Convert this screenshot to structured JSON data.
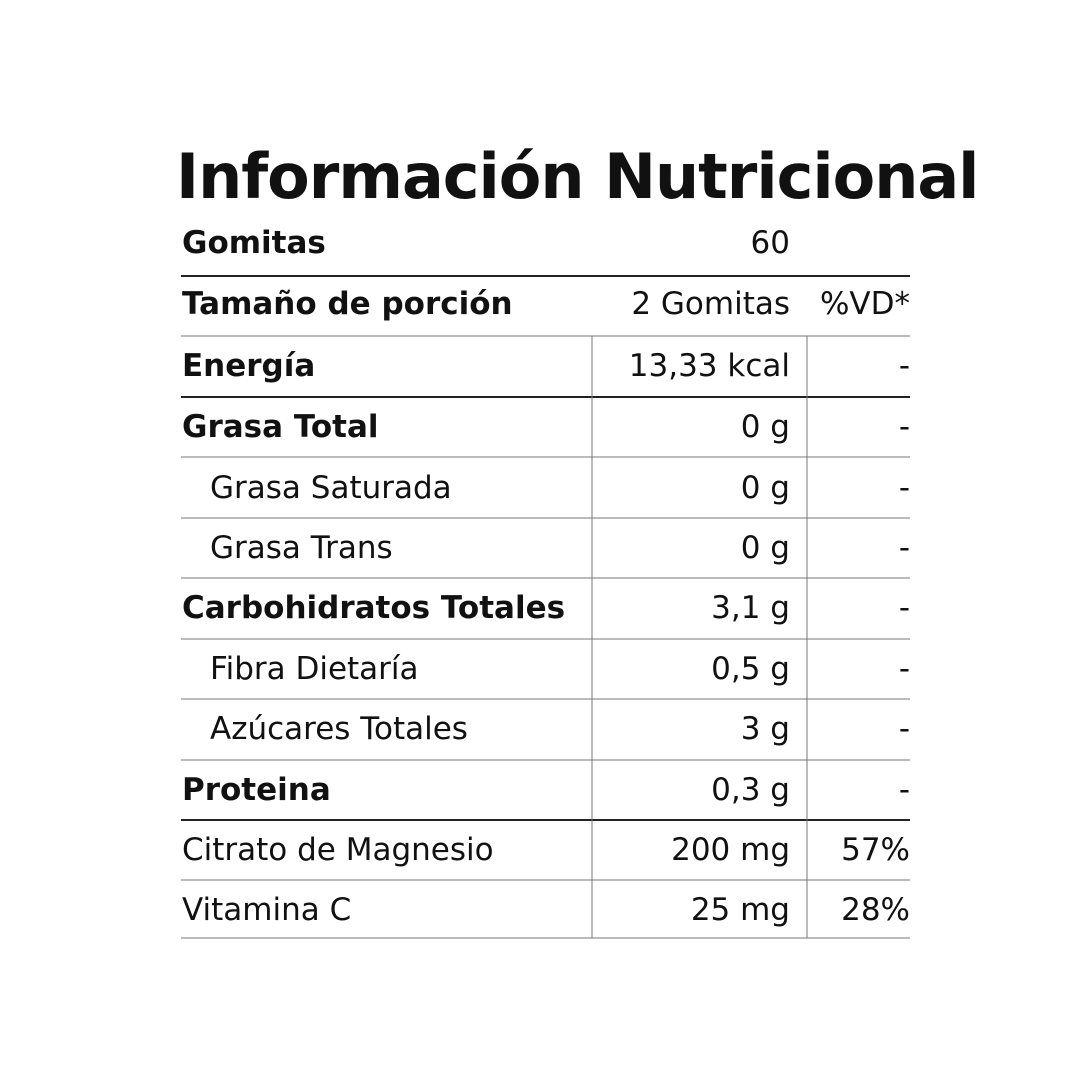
{
  "header": {
    "title": "Información Nutricional"
  },
  "table": {
    "rows": [
      [
        "Gomitas",
        "60"
      ],
      [
        "Tamaño de porción",
        "2 Gomitas",
        "%VD*"
      ],
      [
        "Energía",
        "13,33 kcal",
        "-"
      ],
      [
        "Grasa Total",
        "0 g",
        "-"
      ],
      [
        "Grasa Saturada",
        "0 g",
        "-"
      ],
      [
        "Grasa Trans",
        "0 g",
        "-"
      ],
      [
        "Carbohidratos Totales",
        "3,1 g",
        "-"
      ],
      [
        "Fibra Dietaría",
        "0,5 g",
        "-"
      ],
      [
        "Azúcares Totales",
        "3 g",
        "-"
      ],
      [
        "Proteina",
        "0,3 g",
        "-"
      ],
      [
        "Citrato de Magnesio",
        "200 mg",
        "57%"
      ],
      [
        "Vitamina C",
        "25 mg",
        "28%"
      ]
    ]
  }
}
